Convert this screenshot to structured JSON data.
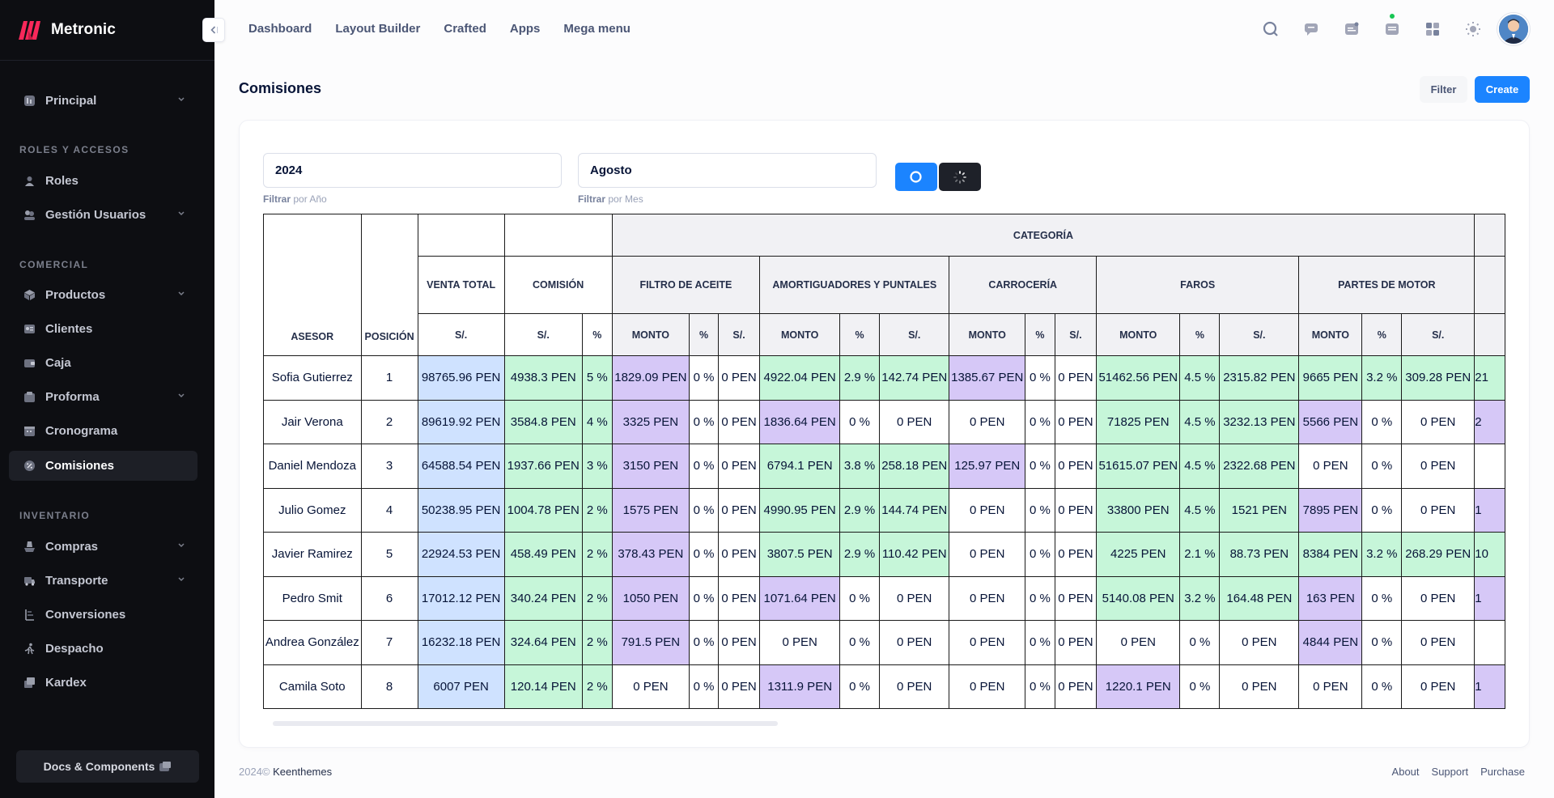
{
  "brand": {
    "name": "Metronic"
  },
  "sidebar": {
    "items": [
      {
        "label": "Principal",
        "icon": "dashboard-icon",
        "has_children": true
      },
      {
        "label": "Roles",
        "icon": "roles-icon",
        "has_children": false
      },
      {
        "label": "Gestión Usuarios",
        "icon": "users-icon",
        "has_children": true
      },
      {
        "label": "Productos",
        "icon": "products-icon",
        "has_children": true
      },
      {
        "label": "Clientes",
        "icon": "clients-icon",
        "has_children": false
      },
      {
        "label": "Caja",
        "icon": "cashbox-icon",
        "has_children": false
      },
      {
        "label": "Proforma",
        "icon": "proforma-icon",
        "has_children": true
      },
      {
        "label": "Cronograma",
        "icon": "calendar-icon",
        "has_children": false
      },
      {
        "label": "Comisiones",
        "icon": "commission-icon",
        "has_children": false,
        "active": true
      },
      {
        "label": "Compras",
        "icon": "purchases-icon",
        "has_children": true
      },
      {
        "label": "Transporte",
        "icon": "truck-icon",
        "has_children": true
      },
      {
        "label": "Conversiones",
        "icon": "conversion-icon",
        "has_children": false
      },
      {
        "label": "Despacho",
        "icon": "dispatch-icon",
        "has_children": false
      },
      {
        "label": "Kardex",
        "icon": "kardex-icon",
        "has_children": false
      }
    ],
    "sections": [
      "ROLES Y ACCESOS",
      "COMERCIAL",
      "INVENTARIO"
    ],
    "docs_label": "Docs & Components"
  },
  "topnav": [
    "Dashboard",
    "Layout Builder",
    "Crafted",
    "Apps",
    "Mega menu"
  ],
  "page": {
    "title": "Comisiones",
    "filter_label": "Filter",
    "create_label": "Create"
  },
  "filters": {
    "year_value": "2024",
    "year_hint_bold": "Filtrar",
    "year_hint_rest": " por Año",
    "month_value": "Agosto",
    "month_hint_bold": "Filtrar",
    "month_hint_rest": " por Mes"
  },
  "table": {
    "h_asesor": "ASESOR",
    "h_posicion": "POSICIÓN",
    "h_venta_total": "VENTA TOTAL",
    "h_comision": "COMISIÓN",
    "h_categoria": "CATEGORÍA",
    "categories": [
      "FILTRO DE ACEITE",
      "AMORTIGUADORES Y PUNTALES",
      "CARROCERÍA",
      "FAROS",
      "PARTES DE MOTOR"
    ],
    "sub_soles": "S/.",
    "sub_pct": "%",
    "sub_monto": "MONTO",
    "rows": [
      {
        "asesor": "Sofia Gutierrez",
        "pos": "1",
        "venta": "98765.96 PEN",
        "com": "4938.3 PEN",
        "com_pct": "5 %",
        "cats": [
          [
            "1829.09 PEN",
            "0 %",
            "0 PEN"
          ],
          [
            "4922.04 PEN",
            "2.9 %",
            "142.74 PEN"
          ],
          [
            "1385.67 PEN",
            "0 %",
            "0 PEN"
          ],
          [
            "51462.56 PEN",
            "4.5 %",
            "2315.82 PEN"
          ],
          [
            "9665 PEN",
            "3.2 %",
            "309.28 PEN"
          ]
        ],
        "extra": "21"
      },
      {
        "asesor": "Jair Verona",
        "pos": "2",
        "venta": "89619.92 PEN",
        "com": "3584.8 PEN",
        "com_pct": "4 %",
        "cats": [
          [
            "3325 PEN",
            "0 %",
            "0 PEN"
          ],
          [
            "1836.64 PEN",
            "0 %",
            "0 PEN"
          ],
          [
            "0 PEN",
            "0 %",
            "0 PEN"
          ],
          [
            "71825 PEN",
            "4.5 %",
            "3232.13 PEN"
          ],
          [
            "5566 PEN",
            "0 %",
            "0 PEN"
          ]
        ],
        "extra": "2"
      },
      {
        "asesor": "Daniel Mendoza",
        "pos": "3",
        "venta": "64588.54 PEN",
        "com": "1937.66 PEN",
        "com_pct": "3 %",
        "cats": [
          [
            "3150 PEN",
            "0 %",
            "0 PEN"
          ],
          [
            "6794.1 PEN",
            "3.8 %",
            "258.18 PEN"
          ],
          [
            "125.97 PEN",
            "0 %",
            "0 PEN"
          ],
          [
            "51615.07 PEN",
            "4.5 %",
            "2322.68 PEN"
          ],
          [
            "0 PEN",
            "0 %",
            "0 PEN"
          ]
        ],
        "extra": ""
      },
      {
        "asesor": "Julio Gomez",
        "pos": "4",
        "venta": "50238.95 PEN",
        "com": "1004.78 PEN",
        "com_pct": "2 %",
        "cats": [
          [
            "1575 PEN",
            "0 %",
            "0 PEN"
          ],
          [
            "4990.95 PEN",
            "2.9 %",
            "144.74 PEN"
          ],
          [
            "0 PEN",
            "0 %",
            "0 PEN"
          ],
          [
            "33800 PEN",
            "4.5 %",
            "1521 PEN"
          ],
          [
            "7895 PEN",
            "0 %",
            "0 PEN"
          ]
        ],
        "extra": "1"
      },
      {
        "asesor": "Javier Ramirez",
        "pos": "5",
        "venta": "22924.53 PEN",
        "com": "458.49 PEN",
        "com_pct": "2 %",
        "cats": [
          [
            "378.43 PEN",
            "0 %",
            "0 PEN"
          ],
          [
            "3807.5 PEN",
            "2.9 %",
            "110.42 PEN"
          ],
          [
            "0 PEN",
            "0 %",
            "0 PEN"
          ],
          [
            "4225 PEN",
            "2.1 %",
            "88.73 PEN"
          ],
          [
            "8384 PEN",
            "3.2 %",
            "268.29 PEN"
          ]
        ],
        "extra": "10"
      },
      {
        "asesor": "Pedro Smit",
        "pos": "6",
        "venta": "17012.12 PEN",
        "com": "340.24 PEN",
        "com_pct": "2 %",
        "cats": [
          [
            "1050 PEN",
            "0 %",
            "0 PEN"
          ],
          [
            "1071.64 PEN",
            "0 %",
            "0 PEN"
          ],
          [
            "0 PEN",
            "0 %",
            "0 PEN"
          ],
          [
            "5140.08 PEN",
            "3.2 %",
            "164.48 PEN"
          ],
          [
            "163 PEN",
            "0 %",
            "0 PEN"
          ]
        ],
        "extra": "1"
      },
      {
        "asesor": "Andrea González",
        "pos": "7",
        "venta": "16232.18 PEN",
        "com": "324.64 PEN",
        "com_pct": "2 %",
        "cats": [
          [
            "791.5 PEN",
            "0 %",
            "0 PEN"
          ],
          [
            "0 PEN",
            "0 %",
            "0 PEN"
          ],
          [
            "0 PEN",
            "0 %",
            "0 PEN"
          ],
          [
            "0 PEN",
            "0 %",
            "0 PEN"
          ],
          [
            "4844 PEN",
            "0 %",
            "0 PEN"
          ]
        ],
        "extra": ""
      },
      {
        "asesor": "Camila Soto",
        "pos": "8",
        "venta": "6007 PEN",
        "com": "120.14 PEN",
        "com_pct": "2 %",
        "cats": [
          [
            "0 PEN",
            "0 %",
            "0 PEN"
          ],
          [
            "1311.9 PEN",
            "0 %",
            "0 PEN"
          ],
          [
            "0 PEN",
            "0 %",
            "0 PEN"
          ],
          [
            "1220.1 PEN",
            "0 %",
            "0 PEN"
          ],
          [
            "0 PEN",
            "0 %",
            "0 PEN"
          ]
        ],
        "extra": "1"
      }
    ],
    "colors": {
      "venta": "#cfe2ff",
      "comision": "#c6f6d9",
      "monto_purple": "#d6c8f7"
    }
  },
  "footer": {
    "year": "2024©",
    "company": "Keenthemes",
    "links": [
      "About",
      "Support",
      "Purchase"
    ]
  }
}
